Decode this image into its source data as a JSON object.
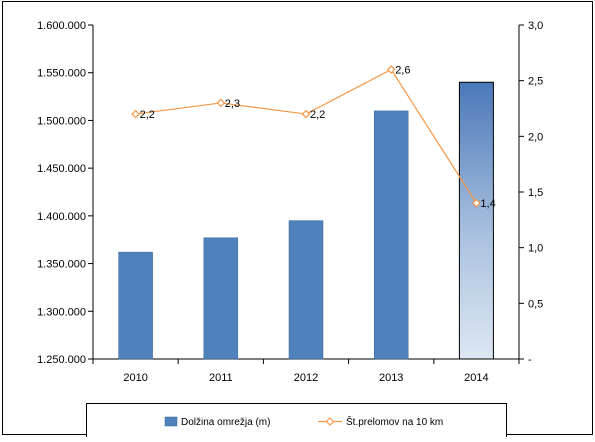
{
  "chart_data": {
    "type": "bar",
    "categories": [
      "2010",
      "2011",
      "2012",
      "2013",
      "2014"
    ],
    "series": [
      {
        "name": "Dolžina omrežja (m)",
        "type": "bar",
        "axis": "left",
        "values": [
          1362000,
          1377000,
          1395000,
          1510000,
          1540000
        ],
        "color": "#4f81bd"
      },
      {
        "name": "Št.prelomov na 10 km",
        "type": "line",
        "axis": "right",
        "values": [
          2.2,
          2.3,
          2.2,
          2.6,
          1.4
        ],
        "data_labels": [
          "2,2",
          "2,3",
          "2,2",
          "2,6",
          "1,4"
        ],
        "color": "#f79646"
      }
    ],
    "y_left": {
      "lim": [
        1250000,
        1600000
      ],
      "ticks": [
        1250000,
        1300000,
        1350000,
        1400000,
        1450000,
        1500000,
        1550000,
        1600000
      ],
      "tick_labels": [
        "1.250.000",
        "1.300.000",
        "1.350.000",
        "1.400.000",
        "1.450.000",
        "1.500.000",
        "1.550.000",
        "1.600.000"
      ]
    },
    "y_right": {
      "lim": [
        0,
        3
      ],
      "ticks": [
        0,
        0.5,
        1,
        1.5,
        2,
        2.5,
        3
      ],
      "tick_labels": [
        "-",
        "0,5",
        "1,0",
        "1,5",
        "2,0",
        "2,5",
        "3,0"
      ]
    },
    "highlight_category": "2014",
    "grid": false,
    "legend_position": "bottom"
  }
}
